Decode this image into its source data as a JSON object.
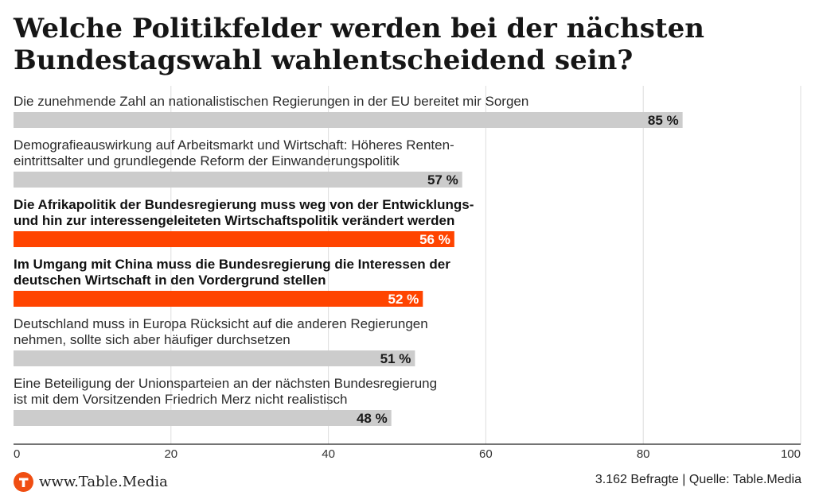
{
  "title_lines": [
    "Welche Politikfelder werden bei der nächsten",
    "Bundestagswahl wahlentscheidend sein?"
  ],
  "chart_data": {
    "type": "bar",
    "orientation": "horizontal",
    "title": "Welche Politikfelder werden bei der nächsten Bundestagswahl wahlentscheidend sein?",
    "categories": [
      [
        "Die zunehmende Zahl an nationalistischen Regierungen in der EU bereitet mir Sorgen"
      ],
      [
        "Demografieauswirkung auf Arbeitsmarkt und Wirtschaft: Höheres Renten-",
        "eintrittsalter und grundlegende Reform der Einwanderungspolitik"
      ],
      [
        "Die Afrikapolitik der Bundesregierung muss weg von der Entwicklungs-",
        "und hin zur interessengeleiteten Wirtschaftspolitik verändert werden"
      ],
      [
        "Im Umgang mit China muss die Bundesregierung die Interessen der",
        "deutschen Wirtschaft in den Vordergrund stellen"
      ],
      [
        "Deutschland muss in Europa Rücksicht auf die anderen Regierungen",
        "nehmen, sollte sich aber häufiger durchsetzen"
      ],
      [
        "Eine Beteiligung der Unionsparteien an der nächsten Bundesregierung",
        "ist mit dem Vorsitzenden Friedrich Merz nicht realistisch"
      ]
    ],
    "values": [
      85,
      57,
      56,
      52,
      51,
      48
    ],
    "value_labels": [
      "85 %",
      "57 %",
      "56 %",
      "52 %",
      "51 %",
      "48 %"
    ],
    "highlighted": [
      false,
      false,
      true,
      true,
      false,
      false
    ],
    "xlim": [
      0,
      100
    ],
    "x_ticks": [
      0,
      20,
      40,
      60,
      80,
      100
    ],
    "grid": true,
    "colors": {
      "bar": "#cccccc",
      "highlight": "#ff4400",
      "label_on_bar": "#1a1a1a",
      "label_on_highlight": "#ffffff",
      "grid": "#dddddd",
      "axis": "#222222"
    }
  },
  "footer": {
    "logo_icon": "table-media-t-logo",
    "site": "www.Table.Media",
    "source": "3.162 Befragte | Quelle: Table.Media"
  }
}
